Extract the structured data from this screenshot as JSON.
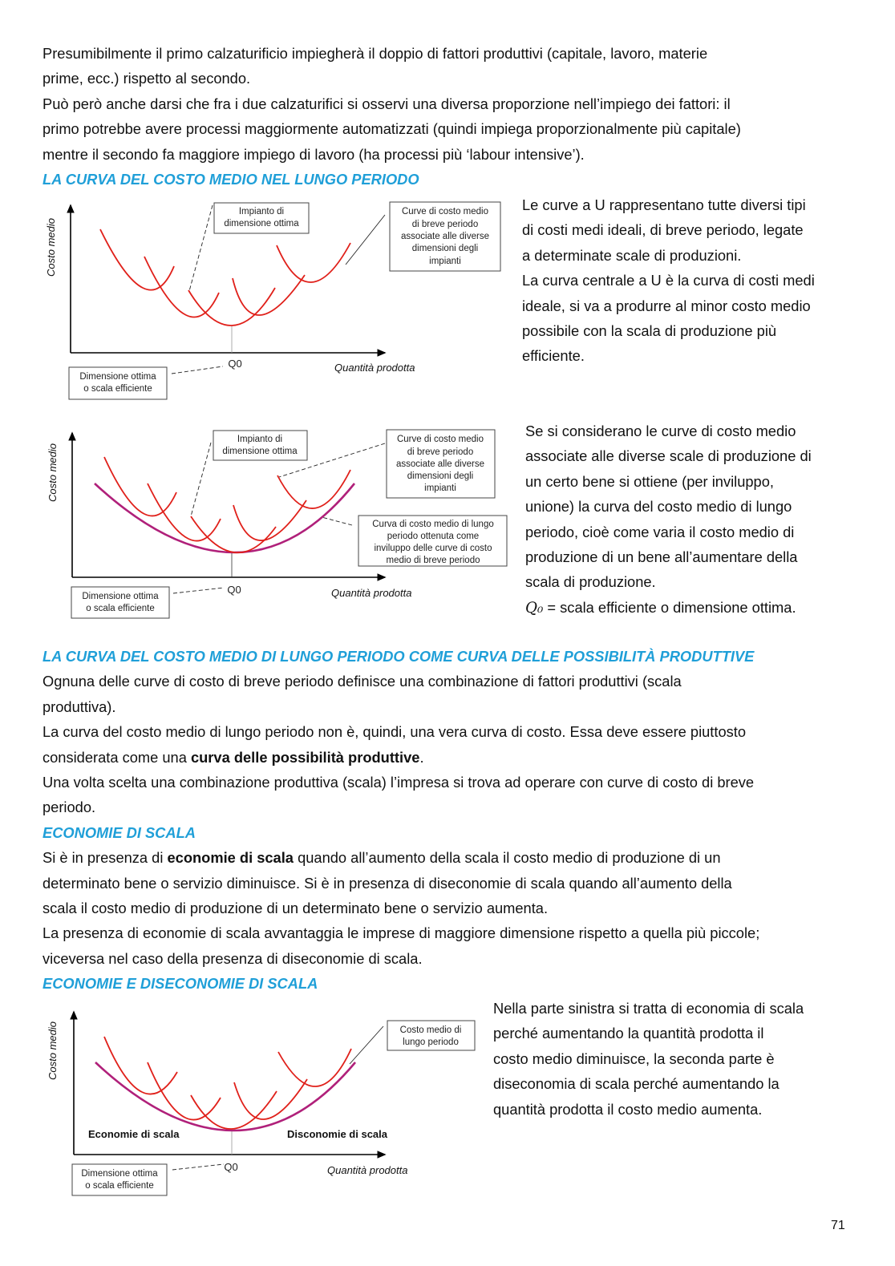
{
  "intro": [
    "Presumibilmente il primo calzaturificio impiegherà il doppio di fattori produttivi (capitale, lavoro, materie",
    "prime, ecc.) rispetto al secondo.",
    "Può però anche darsi che fra i due calzaturifici si osservi una diversa proporzione nell’impiego dei fattori: il",
    "primo potrebbe avere processi maggiormente automatizzati (quindi impiega proporzionalmente più capitale)",
    "mentre il secondo fa maggiore impiego di lavoro (ha processi più ‘labour intensive’).",
    {
      "heading": "LA CURVA DEL COSTO MEDIO NEL LUNGO PERIODO"
    }
  ],
  "right1": [
    "Le curve a U rappresentano tutte diversi tipi",
    "di costi medi ideali, di breve periodo, legate",
    "a determinate scale di produzioni.",
    "La curva centrale a U è la curva di costi medi",
    "ideale, si va a produrre al minor costo medio",
    "possibile con la scala di produzione più",
    "efficiente."
  ],
  "right2": [
    "Se si considerano le curve di costo medio",
    "associate alle diverse scale di produzione di",
    "un certo bene si ottiene (per inviluppo,",
    "unione) la curva del costo medio di lungo",
    "periodo, cioè come varia il costo medio di",
    "produzione di un bene all’aumentare della",
    "scala di produzione.",
    [
      {
        "t": "Q₀",
        "q": true
      },
      {
        "t": " = scala efficiente o dimensione ottima."
      }
    ]
  ],
  "sec2": [
    {
      "heading": "LA CURVA DEL COSTO MEDIO DI LUNGO PERIODO COME CURVA DELLE POSSIBILITÀ PRODUTTIVE"
    },
    "Ognuna delle curve di costo di breve periodo definisce una combinazione di fattori produttivi (scala",
    "produttiva).",
    "La curva del costo medio di lungo periodo non è, quindi, una vera curva di costo. Essa deve essere piuttosto",
    [
      {
        "t": "considerata come una "
      },
      {
        "t": "curva delle possibilità produttive",
        "b": true
      },
      {
        "t": "."
      }
    ],
    "Una volta scelta una combinazione produttiva (scala) l’impresa si trova ad operare con curve di costo di breve",
    "periodo.",
    {
      "heading": "ECONOMIE DI SCALA"
    },
    [
      {
        "t": "Si è in presenza di "
      },
      {
        "t": "economie di scala",
        "b": true
      },
      {
        "t": " quando all’aumento della scala il costo medio di produzione di un"
      }
    ],
    "determinato bene o servizio diminuisce. Si è in presenza di diseconomie di scala quando all’aumento della",
    "scala il costo medio di produzione di un determinato bene o servizio aumenta.",
    "La presenza di economie di scala avvantaggia le imprese di maggiore dimensione rispetto a quella più piccole;",
    "viceversa nel caso della presenza di diseconomie di scala.",
    {
      "heading": "ECONOMIE E DISECONOMIE DI SCALA"
    }
  ],
  "right3": [
    "Nella parte sinistra si tratta di economia di scala",
    "perché aumentando la quantità prodotta il",
    "costo medio diminuisce, la seconda parte è",
    "diseconomia di scala perché aumentando la",
    "quantità prodotta il costo medio aumenta."
  ],
  "diagrams": {
    "y_label": "Costo medio",
    "x_label": "Quantità prodotta",
    "q0": "Q0",
    "optimal_plant": [
      "Impianto di",
      "dimensione ottima"
    ],
    "short_run_curves": [
      "Curve di costo medio",
      "di breve periodo",
      "associate alle diverse",
      "dimensioni degli",
      "impianti"
    ],
    "long_run_envelope": [
      "Curva di costo medio di lungo",
      "periodo ottenuta come",
      "inviluppo delle curve di costo",
      "medio di breve periodo"
    ],
    "efficient_scale": [
      "Dimensione ottima",
      "o scala efficiente"
    ],
    "long_run_cost": [
      "Costo medio di",
      "lungo periodo"
    ],
    "economies": "Economie di scala",
    "diseconomies": "Disconomie di scala"
  },
  "page_number": "71",
  "colors": {
    "heading": "#1f9fd8",
    "short_run_curve": "#e0201a",
    "long_run_curve": "#b0207a"
  }
}
